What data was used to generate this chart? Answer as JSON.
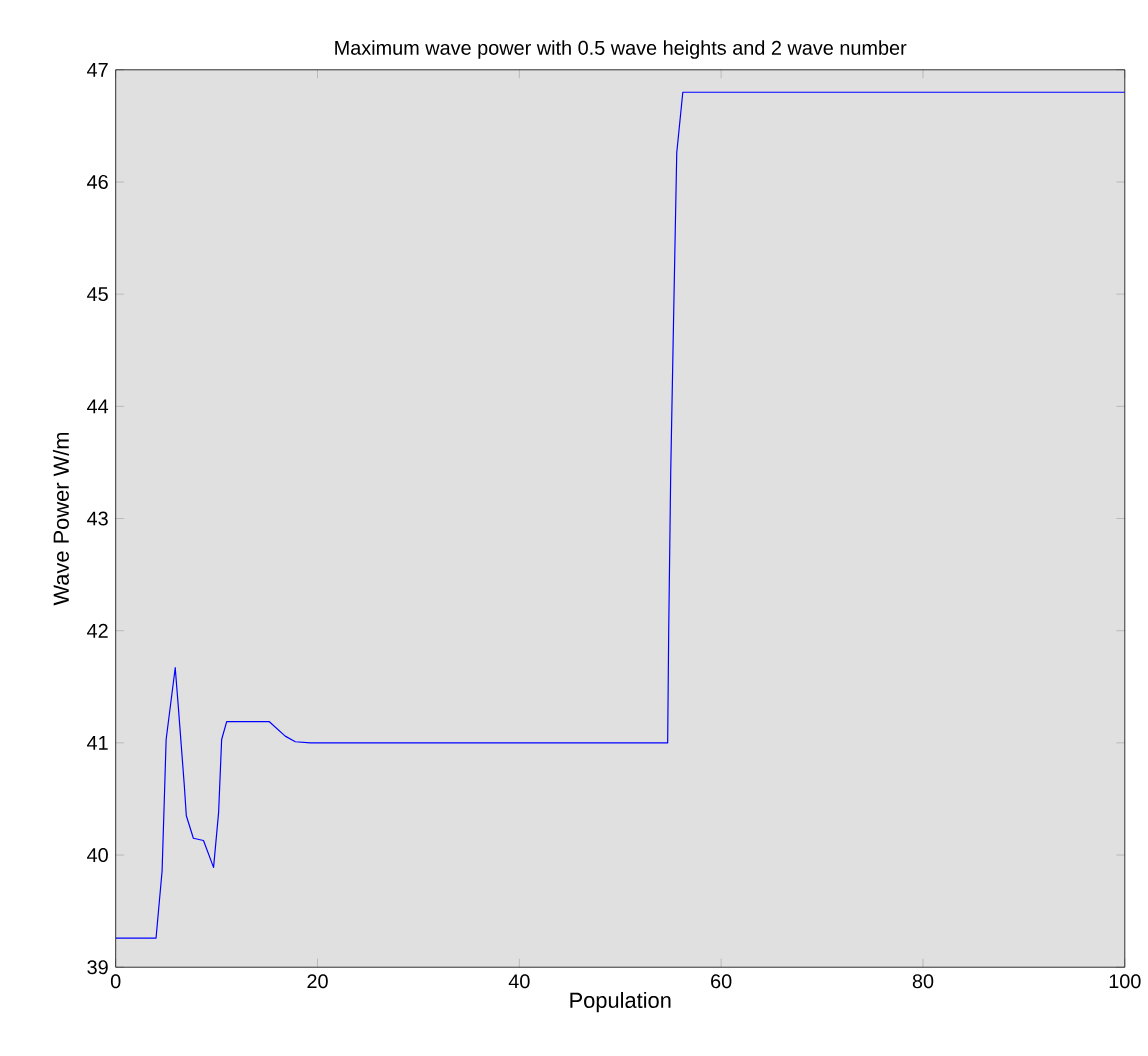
{
  "chart_data": {
    "type": "line",
    "title": "Maximum  wave power with 0.5 wave heights and 2 wave number",
    "xlabel": "Population",
    "ylabel": "Wave Power W/m",
    "x": [
      0,
      4.0,
      4.6,
      4.8,
      5.0,
      5.9,
      6.2,
      6.8,
      7.0,
      7.7,
      8.7,
      9.7,
      10.2,
      10.5,
      11.0,
      15.2,
      16.8,
      17.8,
      19.3,
      20,
      54.7,
      54.8,
      55.0,
      55.3,
      55.6,
      56.2,
      100
    ],
    "series": [
      {
        "color": "#0000ff",
        "values": [
          39.26,
          39.26,
          39.86,
          40.44,
          41.03,
          41.67,
          41.33,
          40.62,
          40.35,
          40.15,
          40.13,
          39.89,
          40.38,
          41.03,
          41.19,
          41.19,
          41.06,
          41.01,
          41.0,
          41.0,
          41.0,
          41.98,
          43.4,
          44.85,
          46.26,
          46.8,
          46.8
        ]
      }
    ],
    "xlim": [
      0,
      100
    ],
    "ylim": [
      39,
      47
    ],
    "xticks": [
      0,
      20,
      40,
      60,
      80,
      100
    ],
    "yticks": [
      39,
      40,
      41,
      42,
      43,
      44,
      45,
      46,
      47
    ],
    "grid": false,
    "marker": "none",
    "line_style": "solid"
  }
}
